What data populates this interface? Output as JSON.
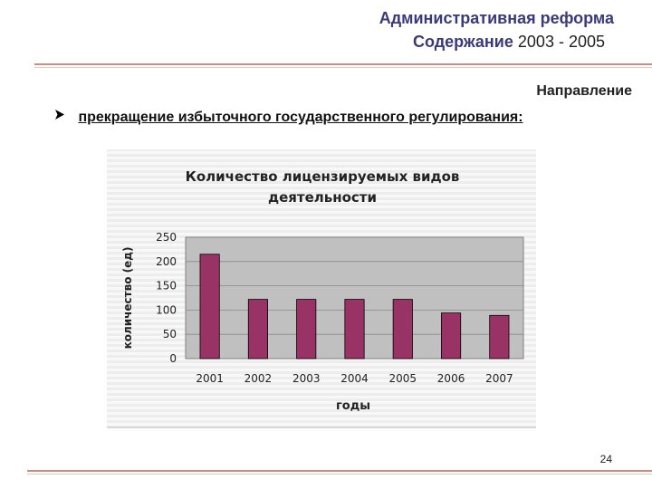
{
  "header": {
    "title": "Административная реформа",
    "subtitle_bold": "Содержание",
    "subtitle_rest": "2003 - 2005"
  },
  "section": {
    "direction_label": "Направление",
    "bullet_text": "прекращение избыточного государственного регулирования:"
  },
  "page_number": "24",
  "colors": {
    "accent": "#3a3a7a",
    "rule": "#d08a80",
    "bar": "#993366",
    "plot_bg": "#c0c0c0"
  },
  "chart_data": {
    "type": "bar",
    "title": "Количество лицензируемых видов деятельности",
    "title_lines": [
      "Количество лицензируемых видов",
      "деятельности"
    ],
    "xlabel": "годы",
    "ylabel": "количество (ед)",
    "categories": [
      "2001",
      "2002",
      "2003",
      "2004",
      "2005",
      "2006",
      "2007"
    ],
    "values": [
      215,
      122,
      122,
      122,
      122,
      94,
      89
    ],
    "ylim": [
      0,
      250
    ],
    "yticks": [
      0,
      50,
      100,
      150,
      200,
      250
    ],
    "grid": true,
    "legend": "none"
  }
}
